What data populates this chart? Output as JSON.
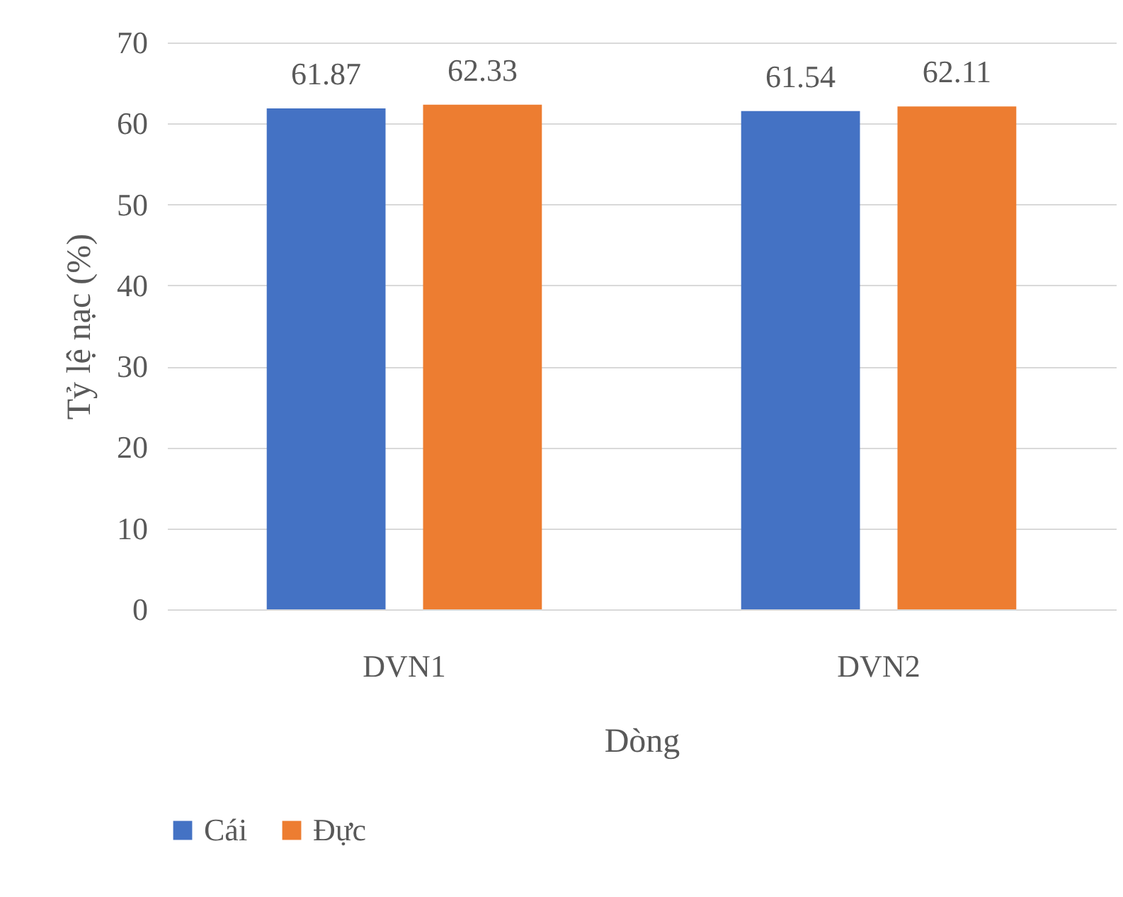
{
  "chart_data": {
    "type": "bar",
    "xlabel": "Dòng",
    "ylabel": "Tỷ lệ nạc (%)",
    "categories": [
      "DVN1",
      "DVN2"
    ],
    "series": [
      {
        "name": "Cái",
        "color": "#4472c4",
        "values": [
          61.87,
          61.54
        ]
      },
      {
        "name": "Đực",
        "color": "#ed7d31",
        "values": [
          62.33,
          62.11
        ]
      }
    ],
    "ylim": [
      0,
      70
    ],
    "yticks": [
      0,
      10,
      20,
      30,
      40,
      50,
      60,
      70
    ],
    "grid": "y",
    "legend": "bottom",
    "data_labels": true
  }
}
